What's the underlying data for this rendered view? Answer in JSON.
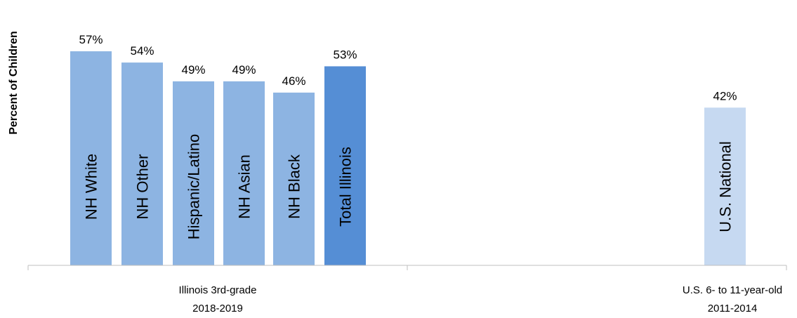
{
  "chart_data": {
    "type": "bar",
    "ylabel": "Percent of Children",
    "ylim": [
      0,
      60
    ],
    "grid": false,
    "legend": "none",
    "groups": [
      {
        "label_line1": "Illinois 3rd-grade",
        "label_line2": "2018-2019"
      },
      {
        "label_line1": "U.S. 6- to 11-year-old",
        "label_line2": "2011-2014"
      }
    ],
    "bars": [
      {
        "category": "NH White",
        "value": 57,
        "value_label": "57%",
        "group": 0,
        "color": "#8DB4E2"
      },
      {
        "category": "NH Other",
        "value": 54,
        "value_label": "54%",
        "group": 0,
        "color": "#8DB4E2"
      },
      {
        "category": "Hispanic/Latino",
        "value": 49,
        "value_label": "49%",
        "group": 0,
        "color": "#8DB4E2"
      },
      {
        "category": "NH Asian",
        "value": 49,
        "value_label": "49%",
        "group": 0,
        "color": "#8DB4E2"
      },
      {
        "category": "NH Black",
        "value": 46,
        "value_label": "46%",
        "group": 0,
        "color": "#8DB4E2"
      },
      {
        "category": "Total Illinois",
        "value": 53,
        "value_label": "53%",
        "group": 0,
        "color": "#558ED5"
      },
      {
        "category": "U.S. National",
        "value": 42,
        "value_label": "42%",
        "group": 1,
        "color": "#C6D9F1"
      }
    ]
  }
}
